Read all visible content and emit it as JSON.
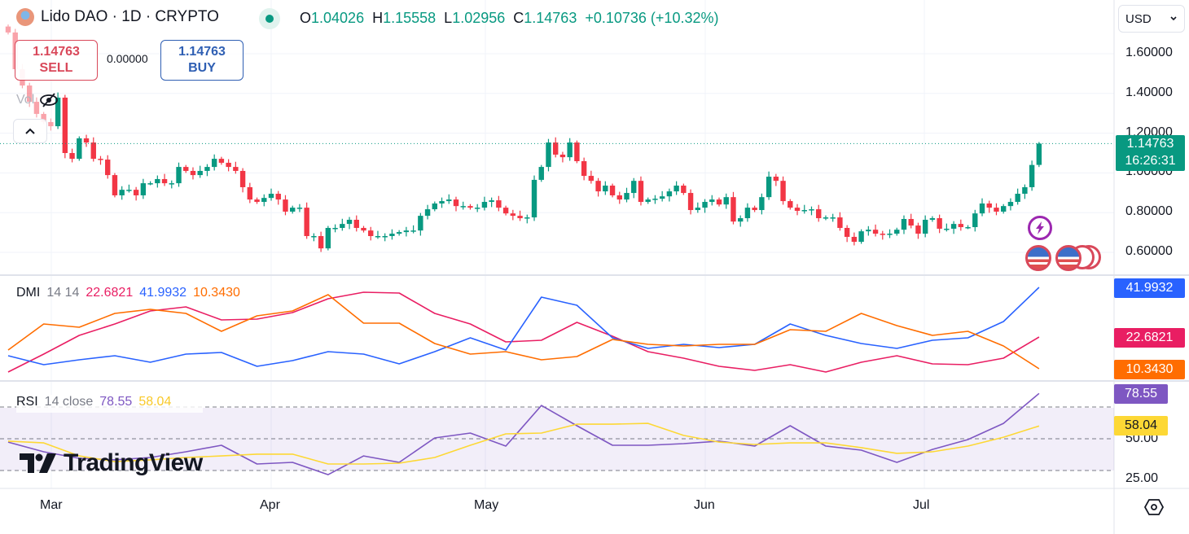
{
  "header": {
    "symbol_title": "Lido DAO · 1D · CRYPTO",
    "ohlc": {
      "o_label": "O",
      "o": "1.04026",
      "h_label": "H",
      "h": "1.15558",
      "l_label": "L",
      "l": "1.02956",
      "c_label": "C",
      "c": "1.14763",
      "change": "+0.10736 (+10.32%)"
    },
    "sell": {
      "price": "1.14763",
      "label": "SELL"
    },
    "buy": {
      "price": "1.14763",
      "label": "BUY"
    },
    "spread": "0.00000",
    "volume_label": "Vol",
    "currency": "USD"
  },
  "price_axis": {
    "ticks": [
      "1.60000",
      "1.40000",
      "1.20000",
      "1.00000",
      "0.80000",
      "0.60000"
    ],
    "current_price": "1.14763",
    "countdown": "16:26:31"
  },
  "time_axis": {
    "months": [
      "Mar",
      "Apr",
      "May",
      "Jun",
      "Jul"
    ]
  },
  "dmi": {
    "name": "DMI",
    "params": "14 14",
    "values": [
      "22.6821",
      "41.9932",
      "10.3430"
    ]
  },
  "rsi": {
    "name": "RSI",
    "params": "14 close",
    "values": [
      "78.55",
      "58.04"
    ],
    "ticks": [
      "50.00",
      "25.00"
    ]
  },
  "branding": "TradingView",
  "colors": {
    "up": "#089981",
    "down": "#F23645",
    "adx": "#E91E63",
    "plus_di": "#2962FF",
    "minus_di": "#FF6D00",
    "rsi": "#7E57C2",
    "rsi_ma": "#FDD835",
    "rsi_band": "#7E57C2"
  },
  "icons": [
    "eye-slash-icon",
    "chevron-up-icon",
    "chevron-down-icon",
    "lightning-event-icon",
    "us-flag-event-icon",
    "settings-icon"
  ],
  "chart_data": [
    {
      "type": "candlestick",
      "title": "Lido DAO · 1D · CRYPTO",
      "ylim": [
        0.5,
        1.75
      ],
      "y_ticks": [
        0.6,
        0.8,
        1.0,
        1.2,
        1.4,
        1.6
      ],
      "x_ticks": [
        "Mar",
        "Apr",
        "May",
        "Jun",
        "Jul"
      ],
      "grid": true,
      "closes": [
        1.707,
        1.522,
        1.44,
        1.358,
        1.297,
        1.256,
        1.235,
        1.379,
        1.1,
        1.071,
        1.174,
        1.153,
        1.071,
        1.067,
        0.989,
        0.887,
        0.915,
        0.915,
        0.887,
        0.948,
        0.948,
        0.969,
        0.948,
        0.948,
        1.03,
        1.01,
        0.989,
        1.01,
        1.03,
        1.071,
        1.051,
        1.03,
        1.01,
        0.928,
        0.866,
        0.854,
        0.874,
        0.895,
        0.866,
        0.805,
        0.825,
        0.825,
        0.682,
        0.682,
        0.62,
        0.723,
        0.723,
        0.743,
        0.764,
        0.723,
        0.71,
        0.682,
        0.682,
        0.682,
        0.694,
        0.702,
        0.71,
        0.71,
        0.784,
        0.817,
        0.846,
        0.858,
        0.866,
        0.833,
        0.833,
        0.825,
        0.825,
        0.854,
        0.862,
        0.825,
        0.796,
        0.784,
        0.772,
        0.776,
        0.965,
        1.03,
        1.153,
        1.092,
        1.079,
        1.153,
        1.059,
        0.985,
        0.96,
        0.907,
        0.936,
        0.887,
        0.866,
        0.899,
        0.96,
        0.854,
        0.866,
        0.87,
        0.882,
        0.907,
        0.936,
        0.899,
        0.813,
        0.825,
        0.854,
        0.866,
        0.841,
        0.878,
        0.755,
        0.772,
        0.825,
        0.813,
        0.878,
        0.981,
        0.96,
        0.858,
        0.825,
        0.809,
        0.813,
        0.817,
        0.772,
        0.776,
        0.776,
        0.723,
        0.678,
        0.653,
        0.706,
        0.714,
        0.694,
        0.69,
        0.694,
        0.714,
        0.768,
        0.735,
        0.694,
        0.764,
        0.772,
        0.719,
        0.719,
        0.743,
        0.727,
        0.727,
        0.796,
        0.846,
        0.825,
        0.805,
        0.833,
        0.854,
        0.895,
        0.928,
        1.04,
        1.14763
      ],
      "last_candle": {
        "open": 1.04026,
        "high": 1.15558,
        "low": 1.02956,
        "close": 1.14763
      },
      "current_price_line": 1.14763
    },
    {
      "type": "line",
      "title": "DMI 14 14",
      "ylim": [
        5,
        46
      ],
      "sample_every_n_candles": 5,
      "series": [
        {
          "name": "22.6821",
          "color": "#E91E63",
          "values": [
            9.07,
            16.03,
            23.31,
            27.74,
            32.81,
            34.39,
            29.33,
            29.64,
            32.18,
            37.56,
            40.09,
            39.77,
            31.86,
            27.74,
            20.78,
            21.41,
            28.38,
            23.0,
            16.98,
            14.45,
            11.29,
            9.7,
            11.92,
            9.07,
            12.87,
            15.4,
            12.24,
            11.92,
            14.45,
            22.68
          ]
        },
        {
          "name": "41.9932",
          "color": "#2962FF",
          "values": [
            15.4,
            11.92,
            13.82,
            15.4,
            12.87,
            16.03,
            16.67,
            11.29,
            13.5,
            16.98,
            16.03,
            12.24,
            16.98,
            22.36,
            17.62,
            38.19,
            35.02,
            22.36,
            18.25,
            19.83,
            18.57,
            19.83,
            27.74,
            23.31,
            20.15,
            18.25,
            21.41,
            22.36,
            28.69,
            41.99
          ]
        },
        {
          "name": "10.3430",
          "color": "#FF6D00",
          "values": [
            17.62,
            27.74,
            26.48,
            31.86,
            33.44,
            31.86,
            24.9,
            30.91,
            32.81,
            39.14,
            28.06,
            28.06,
            20.15,
            16.03,
            16.98,
            13.82,
            15.08,
            21.73,
            19.83,
            19.2,
            19.83,
            19.83,
            25.53,
            24.9,
            31.86,
            27.11,
            23.31,
            24.9,
            19.2,
            10.34
          ]
        }
      ]
    },
    {
      "type": "line",
      "title": "RSI 14 close",
      "ylim": [
        20,
        90
      ],
      "bands": [
        30,
        50,
        70
      ],
      "sample_every_n_candles": 5,
      "series": [
        {
          "name": "78.55",
          "color": "#7E57C2",
          "values": [
            47.9,
            41.8,
            37.7,
            36.7,
            38.2,
            41.8,
            45.9,
            34.1,
            35.1,
            27.4,
            39.2,
            35.1,
            50.5,
            53.6,
            45.4,
            71.0,
            58.2,
            45.9,
            45.9,
            46.9,
            48.5,
            45.4,
            58.2,
            45.4,
            42.8,
            35.1,
            43.3,
            49.5,
            59.7,
            78.55
          ]
        },
        {
          "name": "58.04",
          "color": "#FDD835",
          "values": [
            48.5,
            47.4,
            39.2,
            35.6,
            36.7,
            38.2,
            39.2,
            40.3,
            40.3,
            34.1,
            34.1,
            34.6,
            38.2,
            45.9,
            53.1,
            53.6,
            59.2,
            59.2,
            59.7,
            52.1,
            47.9,
            46.4,
            47.4,
            47.4,
            44.4,
            40.8,
            41.8,
            45.4,
            51.0,
            58.04
          ]
        }
      ]
    }
  ]
}
